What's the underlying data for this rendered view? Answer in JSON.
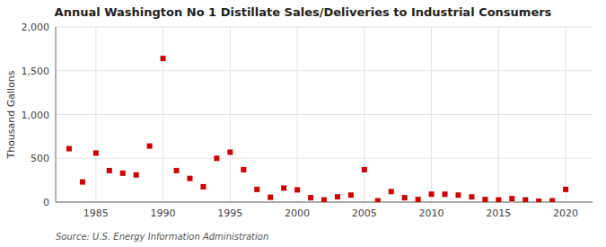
{
  "chart_data": {
    "type": "scatter",
    "title": "Annual Washington No 1 Distillate Sales/Deliveries to Industrial Consumers",
    "y_label": "Thousand Gallons",
    "annotations": [
      "Source: U.S. Energy Information Administration"
    ],
    "x": [
      1983,
      1984,
      1985,
      1986,
      1987,
      1988,
      1989,
      1990,
      1991,
      1992,
      1993,
      1994,
      1995,
      1996,
      1997,
      1998,
      1999,
      2000,
      2001,
      2002,
      2003,
      2004,
      2005,
      2006,
      2007,
      2008,
      2009,
      2010,
      2011,
      2012,
      2013,
      2014,
      2015,
      2016,
      2017,
      2018,
      2019,
      2020
    ],
    "values": [
      610,
      230,
      560,
      360,
      330,
      310,
      640,
      1640,
      360,
      270,
      175,
      500,
      570,
      370,
      145,
      55,
      160,
      140,
      50,
      25,
      60,
      80,
      370,
      15,
      120,
      50,
      30,
      90,
      90,
      80,
      60,
      30,
      25,
      40,
      25,
      10,
      15,
      145
    ],
    "color": "#cc0000",
    "marker": "square",
    "xlim": [
      1982,
      2022
    ],
    "xticks": [
      1985,
      1990,
      1995,
      2000,
      2005,
      2010,
      2015,
      2020
    ],
    "ylim": [
      0,
      2000
    ],
    "yticks": [
      0,
      500,
      {
        "value": 1000,
        "label": "1,000"
      },
      {
        "value": 1500,
        "label": "1,500"
      },
      {
        "value": 2000,
        "label": "2,000"
      }
    ],
    "grid": true
  }
}
